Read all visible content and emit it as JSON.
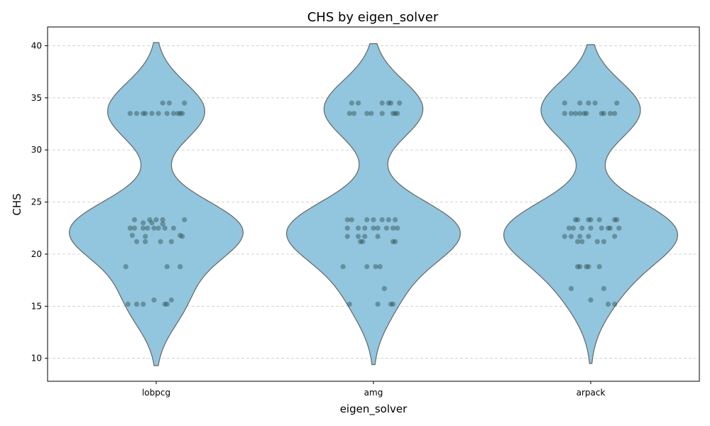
{
  "chart_data": {
    "type": "violin",
    "title": "CHS by eigen_solver",
    "xlabel": "eigen_solver",
    "ylabel": "CHS",
    "ylim": [
      7.8,
      41.8
    ],
    "yticks": [
      10,
      15,
      20,
      25,
      30,
      35,
      40
    ],
    "categories": [
      "lobpcg",
      "amg",
      "arpack"
    ],
    "grid": "horizontal dashed",
    "violin_color": "#92c5de",
    "point_color": "#2f4f4f",
    "groups": [
      {
        "name": "lobpcg",
        "extent": [
          9.3,
          40.3
        ],
        "points": [
          [
            -0.12,
            33.5
          ],
          [
            -0.09,
            33.5
          ],
          [
            -0.06,
            33.5
          ],
          [
            -0.05,
            33.5
          ],
          [
            -0.02,
            33.5
          ],
          [
            0.01,
            33.5
          ],
          [
            0.05,
            33.5
          ],
          [
            0.08,
            33.5
          ],
          [
            0.1,
            33.5
          ],
          [
            0.11,
            33.5
          ],
          [
            0.12,
            33.5
          ],
          [
            0.03,
            34.5
          ],
          [
            0.06,
            34.5
          ],
          [
            0.13,
            34.5
          ],
          [
            -0.1,
            23.3
          ],
          [
            -0.03,
            23.3
          ],
          [
            0.0,
            23.3
          ],
          [
            0.03,
            23.3
          ],
          [
            0.13,
            23.3
          ],
          [
            -0.12,
            22.5
          ],
          [
            -0.1,
            22.5
          ],
          [
            -0.06,
            22.5
          ],
          [
            -0.04,
            22.5
          ],
          [
            -0.01,
            22.5
          ],
          [
            0.01,
            22.5
          ],
          [
            0.04,
            22.5
          ],
          [
            0.08,
            22.5
          ],
          [
            -0.06,
            23.0
          ],
          [
            -0.02,
            23.0
          ],
          [
            0.03,
            22.9
          ],
          [
            -0.11,
            21.8
          ],
          [
            -0.05,
            21.7
          ],
          [
            0.11,
            21.8
          ],
          [
            0.12,
            21.7
          ],
          [
            -0.09,
            21.2
          ],
          [
            -0.05,
            21.2
          ],
          [
            0.02,
            21.2
          ],
          [
            0.07,
            21.2
          ],
          [
            -0.14,
            18.8
          ],
          [
            0.05,
            18.8
          ],
          [
            0.11,
            18.8
          ],
          [
            -0.01,
            15.6
          ],
          [
            0.07,
            15.6
          ],
          [
            -0.13,
            15.2
          ],
          [
            -0.09,
            15.2
          ],
          [
            -0.06,
            15.2
          ],
          [
            0.04,
            15.2
          ],
          [
            0.05,
            15.2
          ]
        ]
      },
      {
        "name": "amg",
        "extent": [
          9.4,
          40.2
        ],
        "points": [
          [
            -0.11,
            33.5
          ],
          [
            -0.09,
            33.5
          ],
          [
            -0.03,
            33.5
          ],
          [
            -0.01,
            33.5
          ],
          [
            0.04,
            33.5
          ],
          [
            0.09,
            33.5
          ],
          [
            0.1,
            33.5
          ],
          [
            0.11,
            33.5
          ],
          [
            -0.1,
            34.5
          ],
          [
            -0.07,
            34.5
          ],
          [
            0.04,
            34.5
          ],
          [
            0.07,
            34.5
          ],
          [
            0.08,
            34.5
          ],
          [
            0.12,
            34.5
          ],
          [
            -0.12,
            23.3
          ],
          [
            -0.1,
            23.3
          ],
          [
            -0.03,
            23.3
          ],
          [
            0.0,
            23.3
          ],
          [
            0.04,
            23.3
          ],
          [
            0.07,
            23.3
          ],
          [
            0.1,
            23.3
          ],
          [
            -0.12,
            22.5
          ],
          [
            -0.07,
            22.5
          ],
          [
            -0.04,
            22.5
          ],
          [
            0.0,
            22.5
          ],
          [
            0.02,
            22.5
          ],
          [
            0.06,
            22.5
          ],
          [
            0.09,
            22.5
          ],
          [
            0.11,
            22.5
          ],
          [
            -0.12,
            21.7
          ],
          [
            -0.07,
            21.7
          ],
          [
            -0.04,
            21.7
          ],
          [
            0.02,
            21.7
          ],
          [
            -0.06,
            21.2
          ],
          [
            -0.05,
            21.2
          ],
          [
            0.09,
            21.2
          ],
          [
            0.1,
            21.2
          ],
          [
            -0.14,
            18.8
          ],
          [
            -0.03,
            18.8
          ],
          [
            0.01,
            18.8
          ],
          [
            0.03,
            18.8
          ],
          [
            0.05,
            16.7
          ],
          [
            -0.11,
            15.2
          ],
          [
            0.02,
            15.2
          ],
          [
            0.08,
            15.2
          ],
          [
            0.09,
            15.2
          ]
        ]
      },
      {
        "name": "arpack",
        "extent": [
          9.5,
          40.1
        ],
        "points": [
          [
            -0.12,
            33.5
          ],
          [
            -0.09,
            33.5
          ],
          [
            -0.07,
            33.5
          ],
          [
            -0.05,
            33.5
          ],
          [
            -0.03,
            33.5
          ],
          [
            -0.02,
            33.5
          ],
          [
            0.05,
            33.5
          ],
          [
            0.06,
            33.5
          ],
          [
            0.09,
            33.5
          ],
          [
            0.11,
            33.5
          ],
          [
            -0.12,
            34.5
          ],
          [
            -0.05,
            34.5
          ],
          [
            -0.01,
            34.5
          ],
          [
            0.02,
            34.5
          ],
          [
            0.12,
            34.5
          ],
          [
            -0.07,
            23.3
          ],
          [
            -0.06,
            23.3
          ],
          [
            -0.01,
            23.3
          ],
          [
            0.0,
            23.3
          ],
          [
            0.04,
            23.3
          ],
          [
            0.11,
            23.3
          ],
          [
            0.12,
            23.3
          ],
          [
            -0.1,
            22.5
          ],
          [
            -0.08,
            22.5
          ],
          [
            -0.04,
            22.5
          ],
          [
            0.0,
            22.5
          ],
          [
            0.05,
            22.5
          ],
          [
            0.08,
            22.5
          ],
          [
            0.09,
            22.5
          ],
          [
            0.13,
            22.5
          ],
          [
            -0.12,
            21.7
          ],
          [
            -0.09,
            21.7
          ],
          [
            -0.05,
            21.7
          ],
          [
            -0.01,
            21.7
          ],
          [
            0.11,
            21.7
          ],
          [
            -0.06,
            21.2
          ],
          [
            -0.04,
            21.2
          ],
          [
            0.03,
            21.2
          ],
          [
            0.06,
            21.2
          ],
          [
            -0.06,
            18.8
          ],
          [
            -0.05,
            18.8
          ],
          [
            -0.02,
            18.8
          ],
          [
            -0.01,
            18.8
          ],
          [
            0.04,
            18.8
          ],
          [
            -0.09,
            16.7
          ],
          [
            0.06,
            16.7
          ],
          [
            0.0,
            15.6
          ],
          [
            0.08,
            15.2
          ],
          [
            0.11,
            15.2
          ]
        ]
      }
    ]
  }
}
